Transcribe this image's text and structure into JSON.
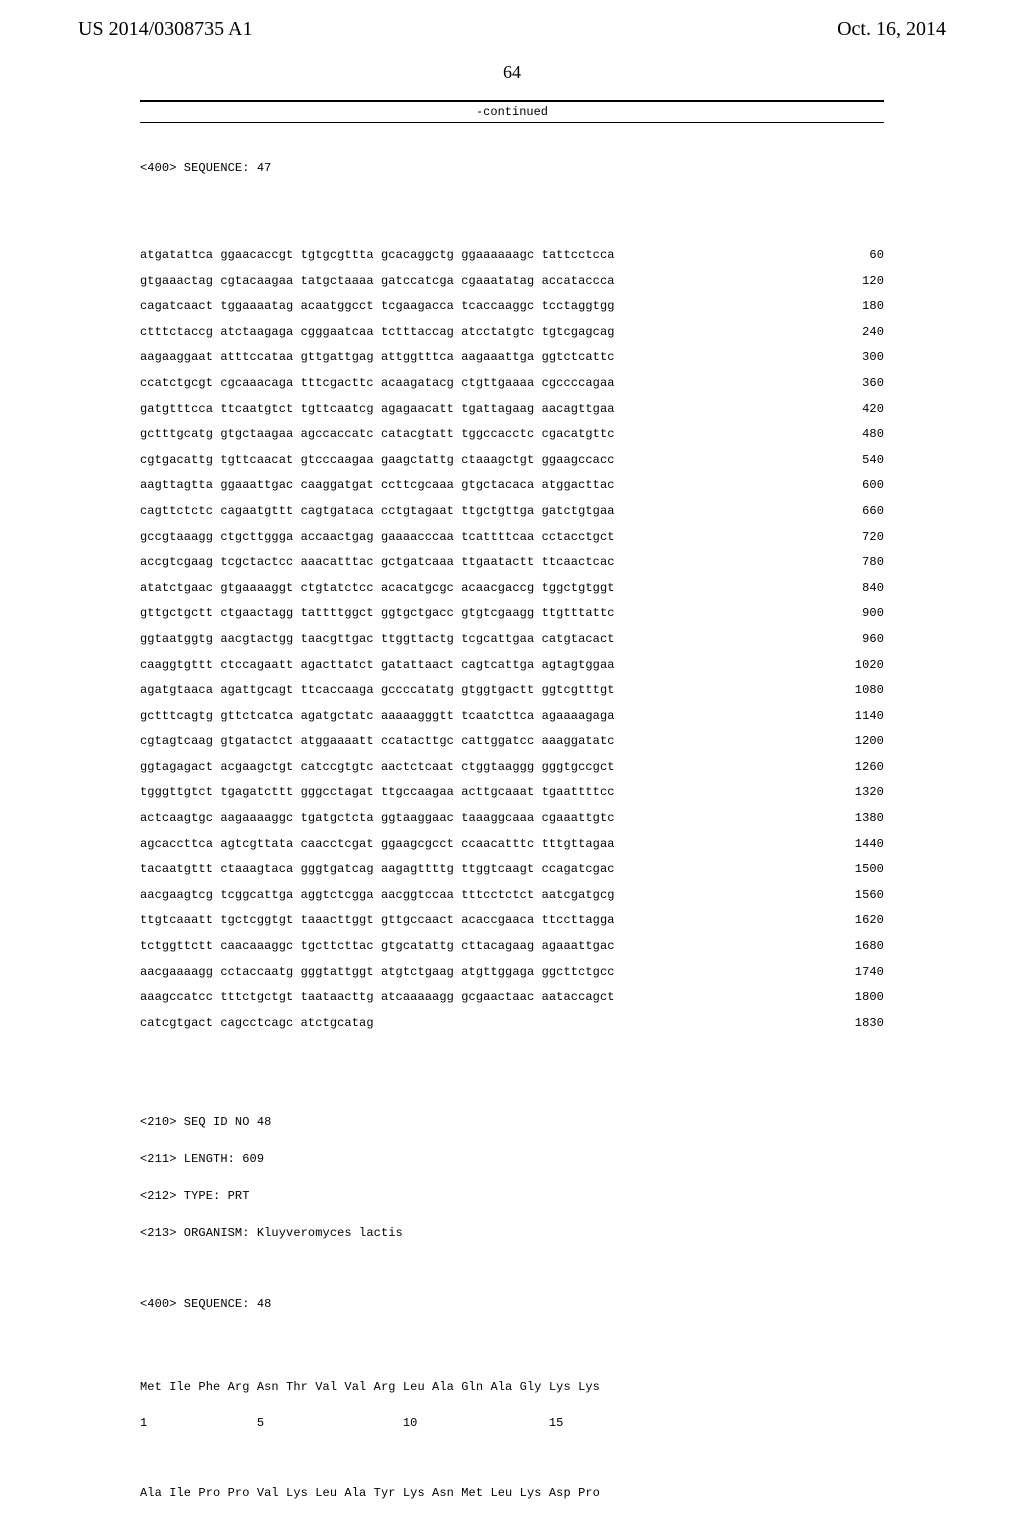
{
  "header": {
    "patent_id": "US 2014/0308735 A1",
    "pub_date": "Oct. 16, 2014",
    "page_number": "64",
    "continued_label": "-continued"
  },
  "pre_sequence": {
    "tag": "<400> SEQUENCE: 47"
  },
  "sequence_rows": [
    {
      "seq": "atgatattca ggaacaccgt tgtgcgttta gcacaggctg ggaaaaaagc tattcctcca",
      "pos": "60"
    },
    {
      "seq": "gtgaaactag cgtacaagaa tatgctaaaa gatccatcga cgaaatatag accataccca",
      "pos": "120"
    },
    {
      "seq": "cagatcaact tggaaaatag acaatggcct tcgaagacca tcaccaaggc tcctaggtgg",
      "pos": "180"
    },
    {
      "seq": "ctttctaccg atctaagaga cgggaatcaa tctttaccag atcctatgtc tgtcgagcag",
      "pos": "240"
    },
    {
      "seq": "aagaaggaat atttccataa gttgattgag attggtttca aagaaattga ggtctcattc",
      "pos": "300"
    },
    {
      "seq": "ccatctgcgt cgcaaacaga tttcgacttc acaagatacg ctgttgaaaa cgccccagaa",
      "pos": "360"
    },
    {
      "seq": "gatgtttcca ttcaatgtct tgttcaatcg agagaacatt tgattagaag aacagttgaa",
      "pos": "420"
    },
    {
      "seq": "gctttgcatg gtgctaagaa agccaccatc catacgtatt tggccacctc cgacatgttc",
      "pos": "480"
    },
    {
      "seq": "cgtgacattg tgttcaacat gtcccaagaa gaagctattg ctaaagctgt ggaagccacc",
      "pos": "540"
    },
    {
      "seq": "aagttagtta ggaaattgac caaggatgat ccttcgcaaa gtgctacaca atggacttac",
      "pos": "600"
    },
    {
      "seq": "cagttctctc cagaatgttt cagtgataca cctgtagaat ttgctgttga gatctgtgaa",
      "pos": "660"
    },
    {
      "seq": "gccgtaaagg ctgcttggga accaactgag gaaaacccaa tcattttcaa cctacctgct",
      "pos": "720"
    },
    {
      "seq": "accgtcgaag tcgctactcc aaacatttac gctgatcaaa ttgaatactt ttcaactcac",
      "pos": "780"
    },
    {
      "seq": "atatctgaac gtgaaaaggt ctgtatctcc acacatgcgc acaacgaccg tggctgtggt",
      "pos": "840"
    },
    {
      "seq": "gttgctgctt ctgaactagg tattttggct ggtgctgacc gtgtcgaagg ttgtttattc",
      "pos": "900"
    },
    {
      "seq": "ggtaatggtg aacgtactgg taacgttgac ttggttactg tcgcattgaa catgtacact",
      "pos": "960"
    },
    {
      "seq": "caaggtgttt ctccagaatt agacttatct gatattaact cagtcattga agtagtggaa",
      "pos": "1020"
    },
    {
      "seq": "agatgtaaca agattgcagt ttcaccaaga gccccatatg gtggtgactt ggtcgtttgt",
      "pos": "1080"
    },
    {
      "seq": "gctttcagtg gttctcatca agatgctatc aaaaagggtt tcaatcttca agaaaagaga",
      "pos": "1140"
    },
    {
      "seq": "cgtagtcaag gtgatactct atggaaaatt ccatacttgc cattggatcc aaaggatatc",
      "pos": "1200"
    },
    {
      "seq": "ggtagagact acgaagctgt catccgtgtc aactctcaat ctggtaaggg gggtgccgct",
      "pos": "1260"
    },
    {
      "seq": "tgggttgtct tgagatcttt gggcctagat ttgccaagaa acttgcaaat tgaattttcc",
      "pos": "1320"
    },
    {
      "seq": "actcaagtgc aagaaaaggc tgatgctcta ggtaaggaac taaaggcaaa cgaaattgtc",
      "pos": "1380"
    },
    {
      "seq": "agcaccttca agtcgttata caacctcgat ggaagcgcct ccaacatttc tttgttagaa",
      "pos": "1440"
    },
    {
      "seq": "tacaatgttt ctaaagtaca gggtgatcag aagagttttg ttggtcaagt ccagatcgac",
      "pos": "1500"
    },
    {
      "seq": "aacgaagtcg tcggcattga aggtctcgga aacggtccaa tttcctctct aatcgatgcg",
      "pos": "1560"
    },
    {
      "seq": "ttgtcaaatt tgctcggtgt taaacttggt gttgccaact acaccgaaca ttccttagga",
      "pos": "1620"
    },
    {
      "seq": "tctggttctt caacaaaggc tgcttcttac gtgcatattg cttacagaag agaaattgac",
      "pos": "1680"
    },
    {
      "seq": "aacgaaaagg cctaccaatg gggtattggt atgtctgaag atgttggaga ggcttctgcc",
      "pos": "1740"
    },
    {
      "seq": "aaagccatcc tttctgctgt taataacttg atcaaaaagg gcgaactaac aataccagct",
      "pos": "1800"
    },
    {
      "seq": "catcgtgact cagcctcagc atctgcatag",
      "pos": "1830"
    }
  ],
  "meta2": {
    "l1": "<210> SEQ ID NO 48",
    "l2": "<211> LENGTH: 609",
    "l3": "<212> TYPE: PRT",
    "l4": "<213> ORGANISM: Kluyveromyces lactis",
    "l5": "<400> SEQUENCE: 48"
  },
  "protein": {
    "row1": "Met Ile Phe Arg Asn Thr Val Val Arg Leu Ala Gln Ala Gly Lys Lys",
    "row1_nums": "1               5                   10                  15",
    "row2": "Ala Ile Pro Pro Val Lys Leu Ala Tyr Lys Asn Met Leu Lys Asp Pro"
  }
}
